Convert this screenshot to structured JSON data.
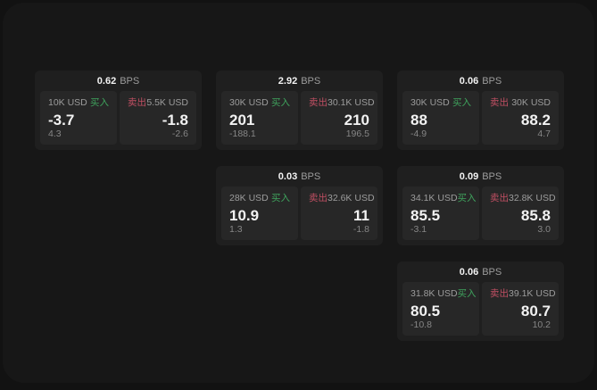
{
  "colors": {
    "bg_outer": "#121212",
    "bg_window": "#171717",
    "card_bg": "#1f1f1f",
    "panel_bg": "#272727",
    "text_primary": "#f2f2f2",
    "text_secondary": "#9c9c9c",
    "text_dim": "#868686",
    "buy_green": "#3fa35d",
    "sell_red": "#c04f63"
  },
  "labels": {
    "bps_suffix": "BPS",
    "buy": "买入",
    "sell": "卖出"
  },
  "cards": [
    {
      "grid": {
        "row": 1,
        "col": 1
      },
      "bps": "0.62",
      "buy": {
        "size": "10K USD",
        "price": "-3.7",
        "delta": "4.3"
      },
      "sell": {
        "size": "5.5K USD",
        "price": "-1.8",
        "delta": "-2.6"
      }
    },
    {
      "grid": {
        "row": 1,
        "col": 2
      },
      "bps": "2.92",
      "buy": {
        "size": "30K USD",
        "price": "201",
        "delta": "-188.1"
      },
      "sell": {
        "size": "30.1K USD",
        "price": "210",
        "delta": "196.5"
      }
    },
    {
      "grid": {
        "row": 1,
        "col": 3
      },
      "bps": "0.06",
      "buy": {
        "size": "30K USD",
        "price": "88",
        "delta": "-4.9"
      },
      "sell": {
        "size": "30K USD",
        "price": "88.2",
        "delta": "4.7"
      }
    },
    {
      "grid": {
        "row": 2,
        "col": 2
      },
      "bps": "0.03",
      "buy": {
        "size": "28K USD",
        "price": "10.9",
        "delta": "1.3"
      },
      "sell": {
        "size": "32.6K USD",
        "price": "11",
        "delta": "-1.8"
      }
    },
    {
      "grid": {
        "row": 2,
        "col": 3
      },
      "bps": "0.09",
      "buy": {
        "size": "34.1K USD",
        "price": "85.5",
        "delta": "-3.1"
      },
      "sell": {
        "size": "32.8K USD",
        "price": "85.8",
        "delta": "3.0"
      }
    },
    {
      "grid": {
        "row": 3,
        "col": 3
      },
      "bps": "0.06",
      "buy": {
        "size": "31.8K USD",
        "price": "80.5",
        "delta": "-10.8"
      },
      "sell": {
        "size": "39.1K USD",
        "price": "80.7",
        "delta": "10.2"
      }
    }
  ]
}
